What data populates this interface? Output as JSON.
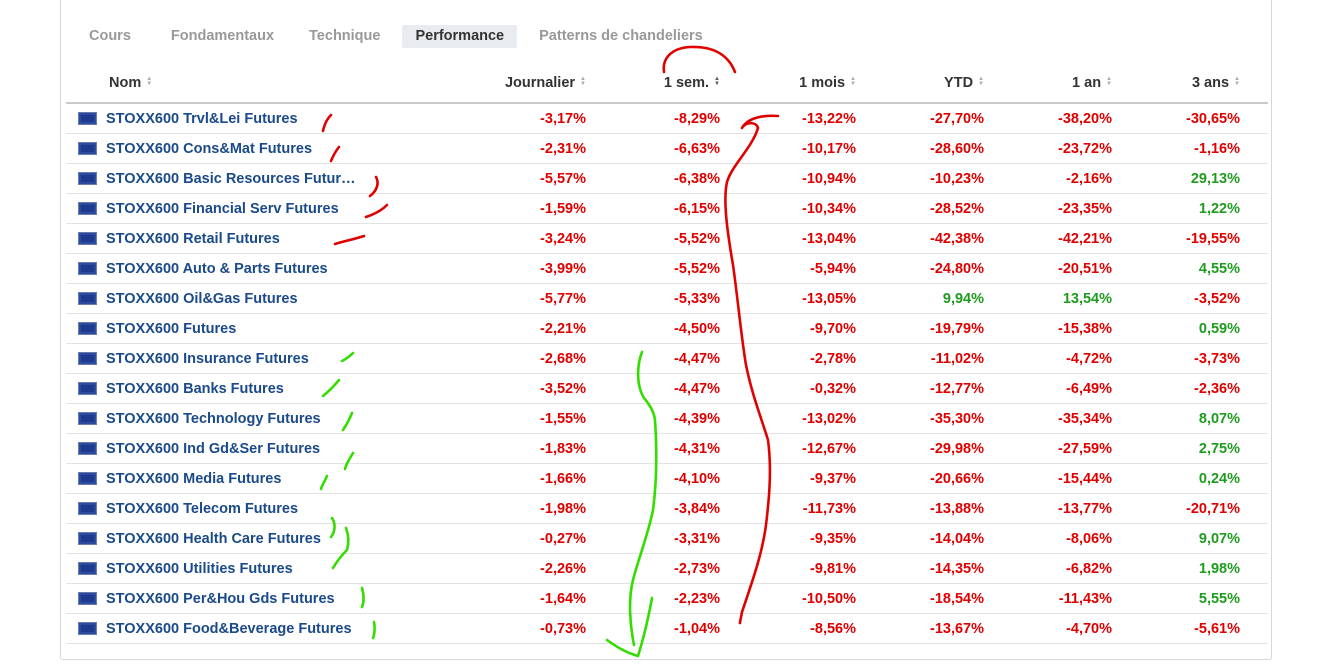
{
  "tabs": [
    {
      "label": "Cours"
    },
    {
      "label": "Fondamentaux"
    },
    {
      "label": "Technique"
    },
    {
      "label": "Performance",
      "active": true
    },
    {
      "label": "Patterns de chandeliers"
    }
  ],
  "columns": {
    "name": "Nom",
    "daily": "Journalier",
    "week": "1 sem.",
    "month": "1 mois",
    "ytd": "YTD",
    "year": "1 an",
    "three_years": "3 ans"
  },
  "colors": {
    "negative": "#e00000",
    "positive": "#1e9c1e",
    "link": "#1a4a8a",
    "annotation_red": "#e00000",
    "annotation_green": "#33dd00"
  },
  "rows": [
    {
      "name": "STOXX600 Trvl&Lei Futures",
      "d": "-3,17%",
      "w": "-8,29%",
      "m": "-13,22%",
      "ytd": "-27,70%",
      "y": "-38,20%",
      "y3": "-30,65%"
    },
    {
      "name": "STOXX600 Cons&Mat Futures",
      "d": "-2,31%",
      "w": "-6,63%",
      "m": "-10,17%",
      "ytd": "-28,60%",
      "y": "-23,72%",
      "y3": "-1,16%"
    },
    {
      "name": "STOXX600 Basic Resources Futur…",
      "d": "-5,57%",
      "w": "-6,38%",
      "m": "-10,94%",
      "ytd": "-10,23%",
      "y": "-2,16%",
      "y3": "29,13%"
    },
    {
      "name": "STOXX600 Financial Serv Futures",
      "d": "-1,59%",
      "w": "-6,15%",
      "m": "-10,34%",
      "ytd": "-28,52%",
      "y": "-23,35%",
      "y3": "1,22%"
    },
    {
      "name": "STOXX600 Retail Futures",
      "d": "-3,24%",
      "w": "-5,52%",
      "m": "-13,04%",
      "ytd": "-42,38%",
      "y": "-42,21%",
      "y3": "-19,55%"
    },
    {
      "name": "STOXX600 Auto & Parts Futures",
      "d": "-3,99%",
      "w": "-5,52%",
      "m": "-5,94%",
      "ytd": "-24,80%",
      "y": "-20,51%",
      "y3": "4,55%"
    },
    {
      "name": "STOXX600 Oil&Gas Futures",
      "d": "-5,77%",
      "w": "-5,33%",
      "m": "-13,05%",
      "ytd": "9,94%",
      "y": "13,54%",
      "y3": "-3,52%"
    },
    {
      "name": "STOXX600 Futures",
      "d": "-2,21%",
      "w": "-4,50%",
      "m": "-9,70%",
      "ytd": "-19,79%",
      "y": "-15,38%",
      "y3": "0,59%"
    },
    {
      "name": "STOXX600 Insurance Futures",
      "d": "-2,68%",
      "w": "-4,47%",
      "m": "-2,78%",
      "ytd": "-11,02%",
      "y": "-4,72%",
      "y3": "-3,73%"
    },
    {
      "name": "STOXX600 Banks Futures",
      "d": "-3,52%",
      "w": "-4,47%",
      "m": "-0,32%",
      "ytd": "-12,77%",
      "y": "-6,49%",
      "y3": "-2,36%"
    },
    {
      "name": "STOXX600 Technology Futures",
      "d": "-1,55%",
      "w": "-4,39%",
      "m": "-13,02%",
      "ytd": "-35,30%",
      "y": "-35,34%",
      "y3": "8,07%"
    },
    {
      "name": "STOXX600 Ind Gd&Ser Futures",
      "d": "-1,83%",
      "w": "-4,31%",
      "m": "-12,67%",
      "ytd": "-29,98%",
      "y": "-27,59%",
      "y3": "2,75%"
    },
    {
      "name": "STOXX600 Media Futures",
      "d": "-1,66%",
      "w": "-4,10%",
      "m": "-9,37%",
      "ytd": "-20,66%",
      "y": "-15,44%",
      "y3": "0,24%"
    },
    {
      "name": "STOXX600 Telecom Futures",
      "d": "-1,98%",
      "w": "-3,84%",
      "m": "-11,73%",
      "ytd": "-13,88%",
      "y": "-13,77%",
      "y3": "-20,71%"
    },
    {
      "name": "STOXX600 Health Care Futures",
      "d": "-0,27%",
      "w": "-3,31%",
      "m": "-9,35%",
      "ytd": "-14,04%",
      "y": "-8,06%",
      "y3": "9,07%"
    },
    {
      "name": "STOXX600 Utilities Futures",
      "d": "-2,26%",
      "w": "-2,73%",
      "m": "-9,81%",
      "ytd": "-14,35%",
      "y": "-6,82%",
      "y3": "1,98%"
    },
    {
      "name": "STOXX600 Per&Hou Gds Futures",
      "d": "-1,64%",
      "w": "-2,23%",
      "m": "-10,50%",
      "ytd": "-18,54%",
      "y": "-11,43%",
      "y3": "5,55%"
    },
    {
      "name": "STOXX600 Food&Beverage Futures",
      "d": "-0,73%",
      "w": "-1,04%",
      "m": "-8,56%",
      "ytd": "-13,67%",
      "y": "-4,70%",
      "y3": "-5,61%"
    }
  ]
}
